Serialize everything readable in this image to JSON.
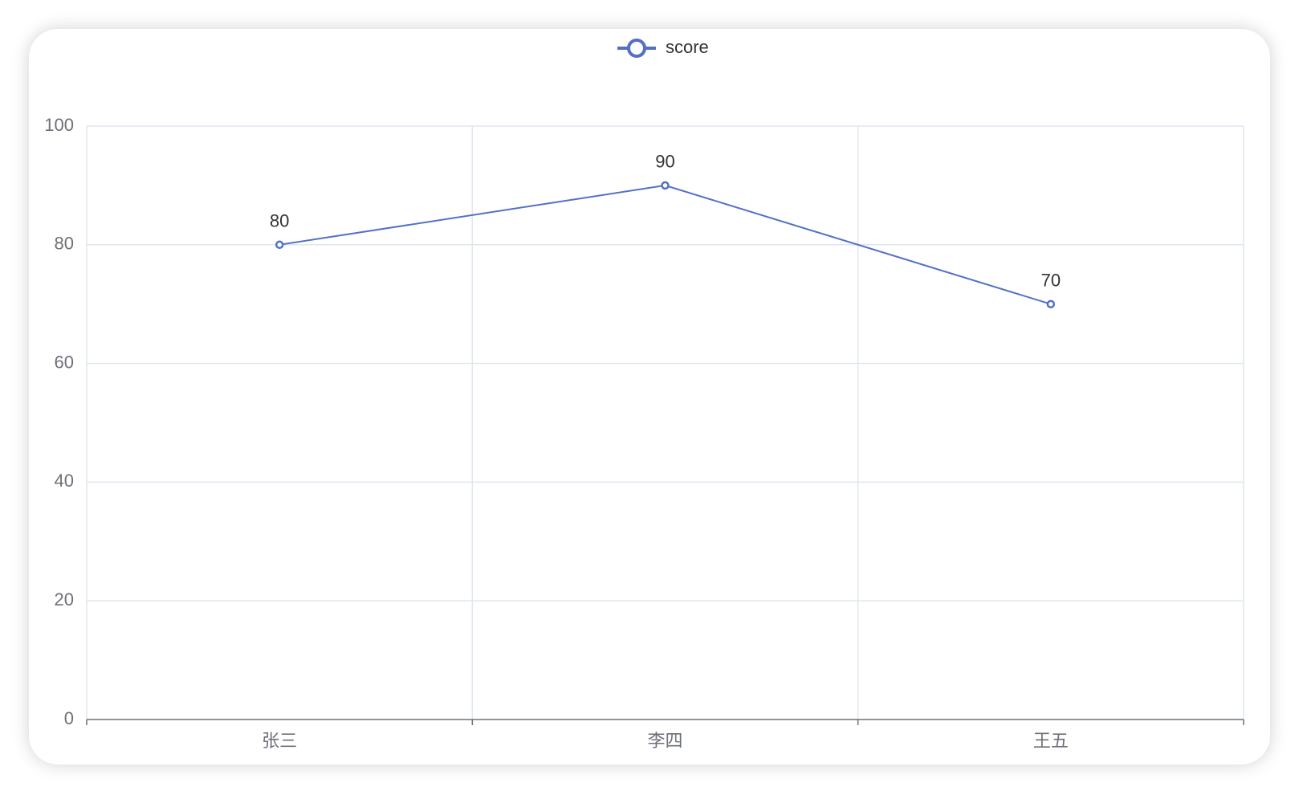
{
  "chart_data": {
    "type": "line",
    "categories": [
      "张三",
      "李四",
      "王五"
    ],
    "series": [
      {
        "name": "score",
        "color": "#5470c6",
        "values": [
          80,
          90,
          70
        ]
      }
    ],
    "ylim": [
      0,
      100
    ],
    "yticks": [
      0,
      20,
      40,
      60,
      80,
      100
    ],
    "grid": true,
    "legend": "top"
  }
}
